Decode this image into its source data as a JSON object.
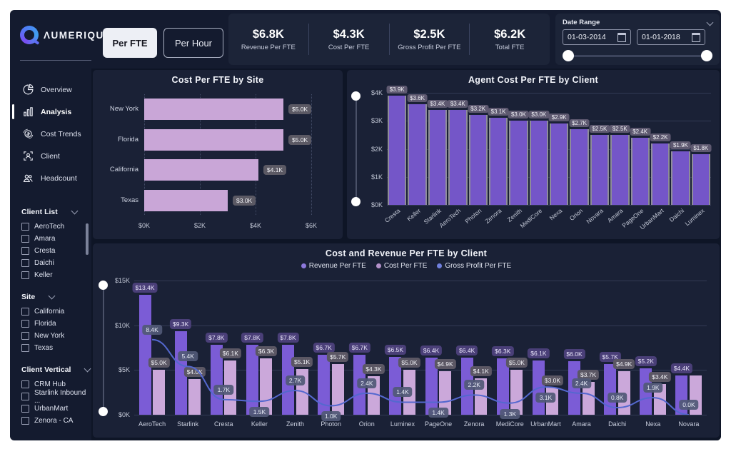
{
  "header": {
    "logo_text": "ΛUMERIQU",
    "toggle": {
      "per_fte": "Per FTE",
      "per_hour": "Per Hour"
    },
    "kpis": [
      {
        "value": "$6.8K",
        "label": "Revenue Per FTE"
      },
      {
        "value": "$4.3K",
        "label": "Cost Per FTE"
      },
      {
        "value": "$2.5K",
        "label": "Gross Profit Per FTE"
      },
      {
        "value": "$6.2K",
        "label": "Total FTE"
      }
    ],
    "date_range": {
      "label": "Date Range",
      "start": "01-03-2014",
      "end": "01-01-2018"
    }
  },
  "sidebar": {
    "nav": [
      {
        "label": "Overview",
        "icon": "pie-chart-icon",
        "active": false
      },
      {
        "label": "Analysis",
        "icon": "bar-chart-icon",
        "active": true
      },
      {
        "label": "Cost Trends",
        "icon": "cost-cycle-icon",
        "active": false
      },
      {
        "label": "Client",
        "icon": "client-frame-icon",
        "active": false
      },
      {
        "label": "Headcount",
        "icon": "people-icon",
        "active": false
      }
    ],
    "filters": [
      {
        "title": "Client List",
        "options": [
          "AeroTech",
          "Amara",
          "Cresta",
          "Daichi",
          "Keller"
        ],
        "scrollbar": true
      },
      {
        "title": "Site",
        "options": [
          "California",
          "Florida",
          "New York",
          "Texas"
        ],
        "scrollbar": false
      },
      {
        "title": "Client Vertical",
        "options": [
          "CRM Hub",
          "Starlink Inbound ...",
          "UrbanMart",
          "Zenora - CA"
        ],
        "scrollbar": false
      }
    ]
  },
  "chart_data": [
    {
      "id": "site_chart",
      "type": "bar",
      "orientation": "horizontal",
      "title": "Cost Per FTE by Site",
      "categories": [
        "New York",
        "Florida",
        "California",
        "Texas"
      ],
      "values": [
        5000,
        5000,
        4100,
        3000
      ],
      "labels": [
        "$5.0K",
        "$5.0K",
        "$4.1K",
        "$3.0K"
      ],
      "xlim": [
        0,
        6000
      ],
      "x_ticks": [
        "$0K",
        "$2K",
        "$4K",
        "$6K"
      ],
      "grid": "dotted-vertical",
      "bar_color": "#c9a6d7"
    },
    {
      "id": "agent_cost_chart",
      "type": "bar",
      "orientation": "vertical",
      "title": "Agent Cost Per FTE by Client",
      "categories": [
        "Cresta",
        "Keller",
        "Starlink",
        "AeroTech",
        "Photon",
        "Zenora",
        "Zenith",
        "MediCore",
        "Nexa",
        "Orion",
        "Novara",
        "Amara",
        "PageOne",
        "UrbanMart",
        "Daichi",
        "Luminex"
      ],
      "values": [
        3900,
        3600,
        3400,
        3400,
        3200,
        3100,
        3000,
        3000,
        2900,
        2700,
        2500,
        2500,
        2400,
        2200,
        1900,
        1800
      ],
      "labels": [
        "$3.9K",
        "$3.6K",
        "$3.4K",
        "$3.4K",
        "$3.2K",
        "$3.1K",
        "$3.0K",
        "$3.0K",
        "$2.9K",
        "$2.7K",
        "$2.5K",
        "$2.5K",
        "$2.4K",
        "$2.2K",
        "$1.9K",
        "$1.8K"
      ],
      "ylim": [
        0,
        4000
      ],
      "y_ticks": [
        "$4K",
        "$3K",
        "$2K",
        "$1K",
        "$0K"
      ],
      "grid": "horizontal",
      "bar_color": "#7456c8"
    },
    {
      "id": "combo_chart",
      "type": "bar+line",
      "title": "Cost and Revenue Per FTE by Client",
      "legend": [
        "Revenue Per FTE",
        "Cost Per FTE",
        "Gross Profit Per FTE"
      ],
      "categories": [
        "AeroTech",
        "Starlink",
        "Cresta",
        "Keller",
        "Zenith",
        "Photon",
        "Orion",
        "Luminex",
        "PageOne",
        "Zenora",
        "MediCore",
        "UrbanMart",
        "Amara",
        "Daichi",
        "Nexa",
        "Novara"
      ],
      "series": [
        {
          "name": "Revenue Per FTE",
          "kind": "bar",
          "color": "#7b5cd6",
          "values": [
            13400,
            9300,
            7800,
            7800,
            7800,
            6700,
            6700,
            6500,
            6400,
            6400,
            6300,
            6100,
            6000,
            5700,
            5200,
            4400
          ],
          "labels": [
            "$13.4K",
            "$9.3K",
            "$7.8K",
            "$7.8K",
            "$7.8K",
            "$6.7K",
            "$6.7K",
            "$6.5K",
            "$6.4K",
            "$6.4K",
            "$6.3K",
            "$6.1K",
            "$6.0K",
            "$5.7K",
            "$5.2K",
            "$4.4K"
          ]
        },
        {
          "name": "Cost Per FTE",
          "kind": "bar",
          "color": "#cba8da",
          "values": [
            5000,
            4000,
            6100,
            6300,
            5100,
            5700,
            4300,
            5000,
            4900,
            4100,
            5000,
            3000,
            3700,
            4900,
            3400,
            4400
          ],
          "labels": [
            "$5.0K",
            "$4.0K",
            "$6.1K",
            "$6.3K",
            "$5.1K",
            "$5.7K",
            "$4.3K",
            "$5.0K",
            "$4.9K",
            "$4.1K",
            "$5.0K",
            "$3.0K",
            "$3.7K",
            "$4.9K",
            "$3.4K",
            ""
          ]
        },
        {
          "name": "Gross Profit Per FTE",
          "kind": "line",
          "color": "#5468cf",
          "values": [
            8400,
            5400,
            1700,
            1500,
            2700,
            1000,
            2400,
            1400,
            1400,
            2200,
            1300,
            3100,
            2400,
            800,
            1900,
            0
          ],
          "labels": [
            "8.4K",
            "5.4K",
            "1.7K",
            "1.5K",
            "2.7K",
            "1.0K",
            "2.4K",
            "1.4K",
            "1.4K",
            "2.2K",
            "1.3K",
            "3.1K",
            "2.4K",
            "0.8K",
            "1.9K",
            "0.0K"
          ]
        }
      ],
      "ylim": [
        0,
        15000
      ],
      "y_ticks": [
        "$15K",
        "$10K",
        "$5K",
        "$0K"
      ],
      "grid": "horizontal",
      "legend_colors": [
        "#8d79dd",
        "#b391c9",
        "#7080dd"
      ]
    }
  ]
}
